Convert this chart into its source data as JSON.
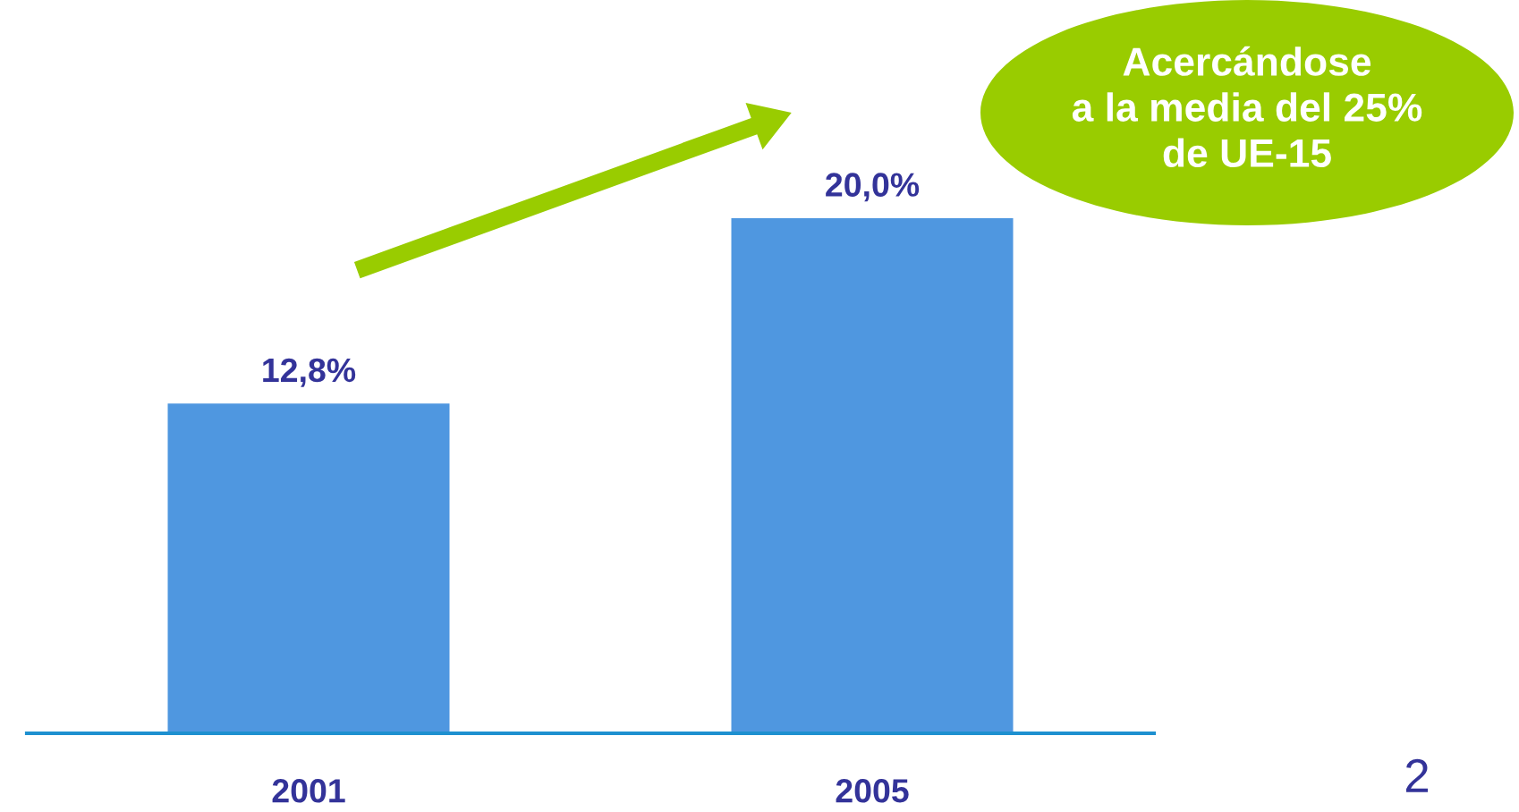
{
  "chart_data": {
    "type": "bar",
    "categories": [
      "2001",
      "2005"
    ],
    "values": [
      12.8,
      20.0
    ],
    "value_labels": [
      "12,8%",
      "20,0%"
    ],
    "color": "#4f97e0",
    "annotations": [
      "Acercándose\na la media del 25%\nde UE-15",
      "2"
    ]
  }
}
